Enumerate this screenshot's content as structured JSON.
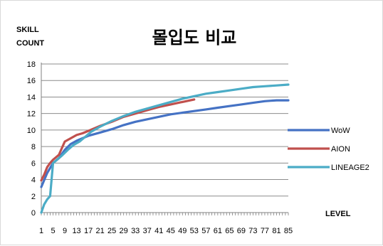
{
  "chart_data": {
    "type": "line",
    "title": "몰입도 비교",
    "ylabel_line1": "SKILL",
    "ylabel_line2": "COUNT",
    "xlabel": "LEVEL",
    "ylim": [
      0,
      18
    ],
    "yticks": [
      0,
      2,
      4,
      6,
      8,
      10,
      12,
      14,
      16,
      18
    ],
    "xlim": [
      1,
      85
    ],
    "xtick_labels": [
      "1",
      "5",
      "9",
      "13",
      "17",
      "21",
      "25",
      "29",
      "33",
      "37",
      "41",
      "45",
      "49",
      "53",
      "57",
      "61",
      "65",
      "69",
      "73",
      "77",
      "81",
      "85"
    ],
    "grid": "horizontal",
    "legend_position": "right",
    "series": [
      {
        "name": "WoW",
        "color": "#4572C4",
        "points": [
          [
            1,
            3.1
          ],
          [
            3,
            4.8
          ],
          [
            5,
            6.0
          ],
          [
            7,
            6.6
          ],
          [
            9,
            7.6
          ],
          [
            11,
            8.3
          ],
          [
            13,
            8.7
          ],
          [
            15,
            9.0
          ],
          [
            17,
            9.3
          ],
          [
            21,
            9.7
          ],
          [
            25,
            10.1
          ],
          [
            29,
            10.6
          ],
          [
            33,
            11.0
          ],
          [
            37,
            11.3
          ],
          [
            41,
            11.6
          ],
          [
            45,
            11.9
          ],
          [
            49,
            12.1
          ],
          [
            53,
            12.3
          ],
          [
            57,
            12.5
          ],
          [
            61,
            12.7
          ],
          [
            65,
            12.9
          ],
          [
            69,
            13.1
          ],
          [
            73,
            13.3
          ],
          [
            77,
            13.5
          ],
          [
            81,
            13.6
          ],
          [
            85,
            13.6
          ]
        ]
      },
      {
        "name": "AION",
        "color": "#C0504D",
        "points": [
          [
            1,
            3.9
          ],
          [
            2,
            4.6
          ],
          [
            3,
            5.5
          ],
          [
            4,
            6.0
          ],
          [
            5,
            6.4
          ],
          [
            6,
            6.7
          ],
          [
            7,
            7.0
          ],
          [
            8,
            7.8
          ],
          [
            9,
            8.6
          ],
          [
            11,
            9.0
          ],
          [
            13,
            9.4
          ],
          [
            15,
            9.6
          ],
          [
            17,
            9.9
          ],
          [
            19,
            10.2
          ],
          [
            21,
            10.5
          ],
          [
            25,
            11.0
          ],
          [
            29,
            11.6
          ],
          [
            33,
            12.0
          ],
          [
            37,
            12.4
          ],
          [
            41,
            12.8
          ],
          [
            45,
            13.1
          ],
          [
            49,
            13.4
          ],
          [
            53,
            13.7
          ]
        ]
      },
      {
        "name": "LINEAGE2",
        "color": "#4BACC6",
        "points": [
          [
            1,
            0
          ],
          [
            2,
            1.0
          ],
          [
            3,
            1.6
          ],
          [
            4,
            2.0
          ],
          [
            5,
            6.0
          ],
          [
            6,
            6.3
          ],
          [
            8,
            6.9
          ],
          [
            10,
            7.6
          ],
          [
            12,
            8.2
          ],
          [
            14,
            8.6
          ],
          [
            16,
            9.2
          ],
          [
            18,
            9.8
          ],
          [
            21,
            10.4
          ],
          [
            25,
            11.1
          ],
          [
            29,
            11.7
          ],
          [
            33,
            12.2
          ],
          [
            37,
            12.6
          ],
          [
            41,
            13.0
          ],
          [
            45,
            13.4
          ],
          [
            49,
            13.8
          ],
          [
            53,
            14.1
          ],
          [
            57,
            14.4
          ],
          [
            61,
            14.6
          ],
          [
            65,
            14.8
          ],
          [
            69,
            15.0
          ],
          [
            73,
            15.2
          ],
          [
            77,
            15.3
          ],
          [
            81,
            15.4
          ],
          [
            85,
            15.5
          ]
        ]
      }
    ]
  }
}
